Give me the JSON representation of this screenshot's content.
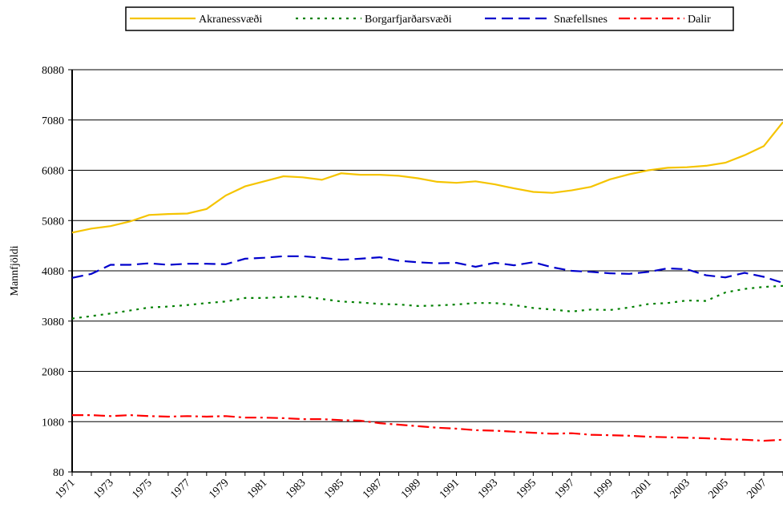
{
  "chart_data": {
    "type": "line",
    "y_label": "Mannfjöldi",
    "legend": "top",
    "grid": true,
    "categories": [
      "1971",
      null,
      "1973",
      null,
      "1975",
      null,
      "1977",
      null,
      "1979",
      null,
      "1981",
      null,
      "1983",
      null,
      "1985",
      null,
      "1987",
      null,
      "1989",
      null,
      "1991",
      null,
      "1993",
      null,
      "1995",
      null,
      "1997",
      null,
      "1999",
      null,
      "2001",
      null,
      "2003",
      null,
      "2005",
      null,
      "2007",
      null
    ],
    "ylim": [
      80,
      8080
    ],
    "yticks": [
      80,
      1080,
      2080,
      3080,
      4080,
      5080,
      6080,
      7080,
      8080
    ],
    "series": [
      {
        "name": "Akranessvæði",
        "color": "#f5c400",
        "dash": "none",
        "values": [
          4840,
          4920,
          4970,
          5060,
          5190,
          5210,
          5220,
          5310,
          5580,
          5760,
          5860,
          5960,
          5940,
          5890,
          6020,
          5990,
          5990,
          5970,
          5920,
          5850,
          5830,
          5860,
          5800,
          5720,
          5650,
          5630,
          5680,
          5750,
          5900,
          6000,
          6080,
          6130,
          6140,
          6170,
          6230,
          6380,
          6560,
          7040
        ]
      },
      {
        "name": "Borgarfjarðarsvæði",
        "color": "#008000",
        "dash": "3 6",
        "values": [
          3130,
          3180,
          3230,
          3290,
          3350,
          3370,
          3400,
          3440,
          3470,
          3540,
          3540,
          3560,
          3570,
          3520,
          3470,
          3450,
          3420,
          3410,
          3380,
          3390,
          3410,
          3440,
          3440,
          3400,
          3340,
          3310,
          3270,
          3310,
          3300,
          3350,
          3420,
          3440,
          3490,
          3480,
          3650,
          3720,
          3760,
          3780
        ]
      },
      {
        "name": "Snæfellsnes",
        "color": "#0000cc",
        "dash": "14 7",
        "values": [
          3940,
          4020,
          4200,
          4200,
          4230,
          4200,
          4220,
          4220,
          4210,
          4320,
          4340,
          4370,
          4370,
          4340,
          4300,
          4320,
          4350,
          4280,
          4250,
          4230,
          4240,
          4160,
          4240,
          4190,
          4250,
          4150,
          4080,
          4060,
          4030,
          4020,
          4060,
          4130,
          4110,
          3990,
          3950,
          4040,
          3960,
          3840
        ]
      },
      {
        "name": "Dalir",
        "color": "#ff0000",
        "dash": "14 5 3 5",
        "values": [
          1210,
          1210,
          1190,
          1210,
          1190,
          1180,
          1190,
          1180,
          1190,
          1160,
          1160,
          1150,
          1130,
          1130,
          1110,
          1100,
          1050,
          1020,
          990,
          960,
          940,
          910,
          900,
          880,
          860,
          840,
          850,
          820,
          810,
          800,
          780,
          770,
          760,
          750,
          730,
          720,
          700,
          720
        ]
      }
    ]
  }
}
